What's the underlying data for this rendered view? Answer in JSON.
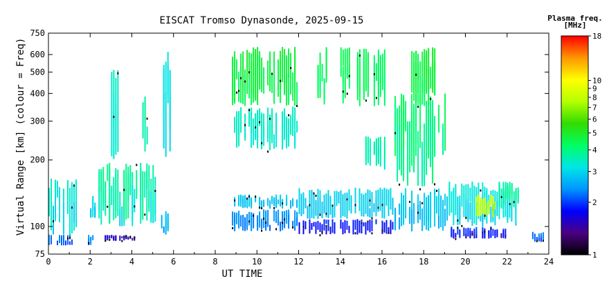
{
  "chart_data": {
    "type": "heatmap",
    "title": "EISCAT Tromso Dynasonde, 2025-09-15",
    "xlabel": "UT TIME",
    "ylabel": "Virtual Range [km] (colour = Freq)",
    "x_ticks": [
      0,
      2,
      4,
      6,
      8,
      10,
      12,
      14,
      16,
      18,
      20,
      22,
      24
    ],
    "xlim": [
      0,
      24
    ],
    "y_ticks": [
      75,
      100,
      200,
      300,
      400,
      500,
      600,
      750
    ],
    "ylim": [
      75,
      750
    ],
    "y_scale": "log",
    "grid": false,
    "colorbar": {
      "title_line1": "Plasma freq.",
      "title_line2": "[MHz]",
      "ticks": [
        1,
        2,
        3,
        4,
        5,
        6,
        7,
        8,
        9,
        10,
        18
      ],
      "range": [
        1,
        18
      ],
      "scale": "log",
      "colors": [
        "#000000",
        "#4b0082",
        "#0000ff",
        "#0096ff",
        "#00e6e6",
        "#00ff64",
        "#32dc00",
        "#b4ff00",
        "#ffff00",
        "#ff9600",
        "#ff0000"
      ]
    },
    "regions": [
      {
        "t": [
          0.0,
          1.4
        ],
        "r": [
          90,
          165
        ],
        "f": [
          2.3,
          3.6
        ]
      },
      {
        "t": [
          0.0,
          1.2
        ],
        "r": [
          82,
          92
        ],
        "f": [
          1.8,
          2.4
        ]
      },
      {
        "t": [
          1.9,
          2.3
        ],
        "r": [
          82,
          92
        ],
        "f": [
          2.0,
          2.5
        ]
      },
      {
        "t": [
          1.9,
          2.3
        ],
        "r": [
          108,
          140
        ],
        "f": [
          2.6,
          3.2
        ]
      },
      {
        "t": [
          2.4,
          5.2
        ],
        "r": [
          100,
          200
        ],
        "f": [
          2.5,
          4.2
        ]
      },
      {
        "t": [
          2.6,
          4.2
        ],
        "r": [
          86,
          92
        ],
        "f": [
          1.3,
          1.7
        ]
      },
      {
        "t": [
          3.0,
          3.4
        ],
        "r": [
          200,
          580
        ],
        "f": [
          2.8,
          3.6
        ]
      },
      {
        "t": [
          4.5,
          4.9
        ],
        "r": [
          200,
          420
        ],
        "f": [
          3.0,
          4.0
        ]
      },
      {
        "t": [
          5.5,
          5.9
        ],
        "r": [
          200,
          650
        ],
        "f": [
          2.6,
          3.4
        ]
      },
      {
        "t": [
          5.4,
          5.8
        ],
        "r": [
          90,
          118
        ],
        "f": [
          2.0,
          3.0
        ]
      },
      {
        "t": [
          8.8,
          12.0
        ],
        "r": [
          350,
          650
        ],
        "f": [
          3.8,
          5.0
        ]
      },
      {
        "t": [
          8.8,
          12.0
        ],
        "r": [
          220,
          350
        ],
        "f": [
          3.0,
          3.6
        ]
      },
      {
        "t": [
          8.8,
          12.0
        ],
        "r": [
          120,
          140
        ],
        "f": [
          2.4,
          3.0
        ]
      },
      {
        "t": [
          8.8,
          12.0
        ],
        "r": [
          95,
          120
        ],
        "f": [
          2.0,
          2.5
        ]
      },
      {
        "t": [
          12.0,
          16.6
        ],
        "r": [
          92,
          108
        ],
        "f": [
          1.4,
          2.0
        ]
      },
      {
        "t": [
          12.0,
          16.6
        ],
        "r": [
          108,
          150
        ],
        "f": [
          2.5,
          3.1
        ]
      },
      {
        "t": [
          12.8,
          13.4
        ],
        "r": [
          350,
          650
        ],
        "f": [
          3.8,
          4.6
        ]
      },
      {
        "t": [
          14.0,
          14.5
        ],
        "r": [
          350,
          650
        ],
        "f": [
          3.8,
          4.6
        ]
      },
      {
        "t": [
          14.8,
          16.2
        ],
        "r": [
          350,
          650
        ],
        "f": [
          3.6,
          4.6
        ]
      },
      {
        "t": [
          15.2,
          16.2
        ],
        "r": [
          180,
          260
        ],
        "f": [
          3.0,
          3.8
        ]
      },
      {
        "t": [
          16.6,
          19.2
        ],
        "r": [
          150,
          400
        ],
        "f": [
          2.8,
          4.5
        ]
      },
      {
        "t": [
          17.4,
          18.6
        ],
        "r": [
          350,
          650
        ],
        "f": [
          3.8,
          5.0
        ]
      },
      {
        "t": [
          16.6,
          19.2
        ],
        "r": [
          95,
          150
        ],
        "f": [
          2.2,
          3.2
        ]
      },
      {
        "t": [
          19.2,
          22.0
        ],
        "r": [
          88,
          100
        ],
        "f": [
          1.2,
          2.2
        ]
      },
      {
        "t": [
          19.2,
          22.5
        ],
        "r": [
          100,
          160
        ],
        "f": [
          2.6,
          3.4
        ]
      },
      {
        "t": [
          20.5,
          21.5
        ],
        "r": [
          110,
          140
        ],
        "f": [
          5.5,
          8.5
        ]
      },
      {
        "t": [
          21.6,
          22.6
        ],
        "r": [
          120,
          160
        ],
        "f": [
          3.0,
          4.0
        ]
      },
      {
        "t": [
          23.2,
          23.8
        ],
        "r": [
          85,
          95
        ],
        "f": [
          1.8,
          2.4
        ]
      }
    ]
  }
}
